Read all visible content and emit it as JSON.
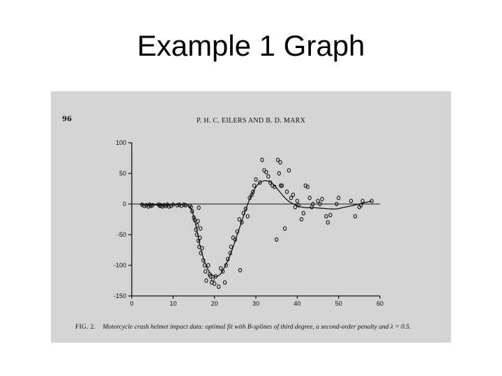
{
  "slide": {
    "title": "Example 1  Graph"
  },
  "figure": {
    "page_number": "96",
    "running_head": "P. H. C. EILERS AND B. D. MARX",
    "caption_label": "FIG. 2.",
    "caption_text": "Motorcycle crash helmet impact data: optimal fit with B-splines of third degree, a second-order penalty and λ = 0.5."
  },
  "chart_data": {
    "type": "scatter",
    "title": "",
    "xlabel": "",
    "ylabel": "",
    "xlim": [
      0,
      60
    ],
    "ylim": [
      -150,
      100
    ],
    "x_ticks": [
      0,
      10,
      20,
      30,
      40,
      50,
      60
    ],
    "y_ticks": [
      100,
      50,
      0,
      -50,
      -100,
      -150
    ],
    "x_tick_labels": [
      "0",
      "10",
      "20",
      "30",
      "40",
      "50",
      "60"
    ],
    "y_tick_labels": [
      "100",
      "50",
      "0",
      "-50",
      "-100",
      "-150"
    ],
    "reference_line_y": 0,
    "grid": false,
    "marker_color": "#111111",
    "series": [
      {
        "kind": "points",
        "points": [
          [
            2.5,
            -1
          ],
          [
            3,
            -3
          ],
          [
            3.5,
            -2
          ],
          [
            4,
            -4
          ],
          [
            4.3,
            -1
          ],
          [
            4.6,
            -3
          ],
          [
            5,
            -2
          ],
          [
            6.5,
            -1
          ],
          [
            6.8,
            -3
          ],
          [
            7,
            -2
          ],
          [
            7.4,
            -4
          ],
          [
            7.8,
            -2
          ],
          [
            8.2,
            -3
          ],
          [
            8.6,
            -1
          ],
          [
            9,
            -4
          ],
          [
            9.5,
            -3
          ],
          [
            10,
            -1
          ],
          [
            11,
            -2
          ],
          [
            11.5,
            -1
          ],
          [
            12,
            -3
          ],
          [
            12.6,
            -1
          ],
          [
            13,
            -2
          ],
          [
            14,
            -3
          ],
          [
            14.3,
            -5
          ],
          [
            14.6,
            -12
          ],
          [
            15,
            -22
          ],
          [
            15.2,
            -26
          ],
          [
            15.5,
            -42
          ],
          [
            15.7,
            -50
          ],
          [
            15.8,
            -35
          ],
          [
            16,
            -28
          ],
          [
            16.1,
            -60
          ],
          [
            16.3,
            -70
          ],
          [
            16.5,
            -55
          ],
          [
            16.7,
            -80
          ],
          [
            17,
            -72
          ],
          [
            16.2,
            -6
          ],
          [
            16.6,
            -40
          ],
          [
            17.3,
            -92
          ],
          [
            17.6,
            -100
          ],
          [
            17.8,
            -110
          ],
          [
            18,
            -125
          ],
          [
            18.5,
            -100
          ],
          [
            18.8,
            -115
          ],
          [
            19,
            -118
          ],
          [
            19.3,
            -128
          ],
          [
            19.6,
            -123
          ],
          [
            20,
            -130
          ],
          [
            20.3,
            -118
          ],
          [
            21,
            -135
          ],
          [
            21.5,
            -105
          ],
          [
            22,
            -110
          ],
          [
            22.5,
            -128
          ],
          [
            22.8,
            -100
          ],
          [
            23.2,
            -90
          ],
          [
            23.8,
            -80
          ],
          [
            24,
            -70
          ],
          [
            24.5,
            -55
          ],
          [
            25,
            -58
          ],
          [
            25.5,
            -45
          ],
          [
            26,
            -25
          ],
          [
            26.2,
            -108
          ],
          [
            26.6,
            -30
          ],
          [
            27,
            -15
          ],
          [
            27.5,
            -8
          ],
          [
            28,
            -20
          ],
          [
            28.5,
            10
          ],
          [
            29,
            15
          ],
          [
            29.3,
            20
          ],
          [
            29.6,
            30
          ],
          [
            30,
            40
          ],
          [
            31,
            35
          ],
          [
            31.5,
            72
          ],
          [
            32,
            55
          ],
          [
            32.5,
            52
          ],
          [
            33,
            45
          ],
          [
            33.5,
            35
          ],
          [
            34,
            30
          ],
          [
            34.5,
            28
          ],
          [
            35,
            -58
          ],
          [
            35.3,
            72
          ],
          [
            35.6,
            50
          ],
          [
            35.9,
            68
          ],
          [
            36,
            30
          ],
          [
            36.3,
            30
          ],
          [
            37,
            -40
          ],
          [
            37.5,
            20
          ],
          [
            38,
            55
          ],
          [
            38.5,
            10
          ],
          [
            39,
            15
          ],
          [
            39.5,
            -5
          ],
          [
            40,
            5
          ],
          [
            40.3,
            -2
          ],
          [
            41,
            -25
          ],
          [
            41.5,
            -15
          ],
          [
            42,
            30
          ],
          [
            42.5,
            28
          ],
          [
            43,
            10
          ],
          [
            43.5,
            -5
          ],
          [
            43.8,
            0
          ],
          [
            45,
            5
          ],
          [
            45.5,
            0
          ],
          [
            46,
            8
          ],
          [
            47,
            -20
          ],
          [
            47.4,
            -30
          ],
          [
            48,
            -18
          ],
          [
            49.5,
            0
          ],
          [
            50,
            10
          ],
          [
            53,
            5
          ],
          [
            54,
            -20
          ],
          [
            55,
            -5
          ],
          [
            55.4,
            -2
          ],
          [
            55.8,
            5
          ],
          [
            58,
            5
          ]
        ]
      },
      {
        "kind": "fit",
        "points": [
          [
            2,
            -1
          ],
          [
            6,
            -1.5
          ],
          [
            10,
            -1
          ],
          [
            12.5,
            -0.8
          ],
          [
            13.5,
            -2
          ],
          [
            14.5,
            -10
          ],
          [
            15.5,
            -35
          ],
          [
            16.5,
            -68
          ],
          [
            17.5,
            -92
          ],
          [
            18.5,
            -108
          ],
          [
            19.5,
            -116
          ],
          [
            20.5,
            -118
          ],
          [
            21.5,
            -114
          ],
          [
            22.5,
            -102
          ],
          [
            23.5,
            -88
          ],
          [
            24.5,
            -70
          ],
          [
            25.5,
            -50
          ],
          [
            26.5,
            -30
          ],
          [
            27.5,
            -10
          ],
          [
            28.5,
            8
          ],
          [
            29.5,
            22
          ],
          [
            30.5,
            32
          ],
          [
            31.5,
            37
          ],
          [
            32.5,
            38
          ],
          [
            33.5,
            36
          ],
          [
            34.5,
            30
          ],
          [
            35.5,
            22
          ],
          [
            36.5,
            14
          ],
          [
            37.5,
            7
          ],
          [
            38.5,
            2
          ],
          [
            39.5,
            -1
          ],
          [
            40.5,
            -4
          ],
          [
            42,
            -6
          ],
          [
            44,
            -6
          ],
          [
            46,
            -7
          ],
          [
            48,
            -8
          ],
          [
            49.5,
            -8
          ],
          [
            51,
            -6
          ],
          [
            53,
            -3
          ],
          [
            55,
            0
          ],
          [
            58,
            5
          ]
        ]
      }
    ]
  }
}
